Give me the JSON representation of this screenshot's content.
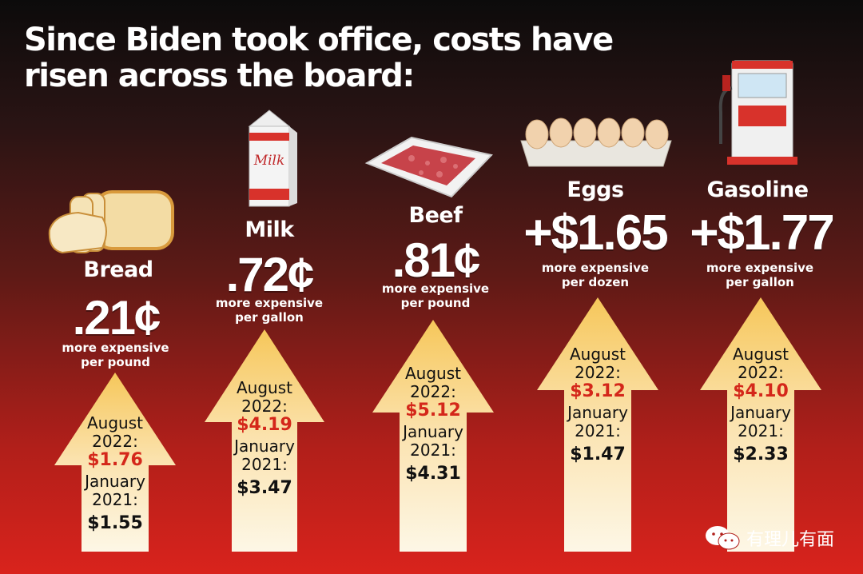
{
  "title": "Since Biden took office, costs have risen across the board:",
  "items": [
    {
      "name": "Bread",
      "increase": ".21¢",
      "note1": "more expensive",
      "note2": "per pound",
      "aug_label": "August",
      "aug_label2": "2022:",
      "aug_price": "$1.76",
      "jan_label": "January",
      "jan_label2": "2021:",
      "jan_price": "$1.55",
      "icon": "bread-icon"
    },
    {
      "name": "Milk",
      "increase": ".72¢",
      "note1": "more expensive",
      "note2": "per gallon",
      "aug_label": "August",
      "aug_label2": "2022:",
      "aug_price": "$4.19",
      "jan_label": "January",
      "jan_label2": "2021:",
      "jan_price": "$3.47",
      "icon": "milk-carton-icon",
      "carton_text": "Milk"
    },
    {
      "name": "Beef",
      "increase": ".81¢",
      "note1": "more expensive",
      "note2": "per pound",
      "aug_label": "August",
      "aug_label2": "2022:",
      "aug_price": "$5.12",
      "jan_label": "January",
      "jan_label2": "2021:",
      "jan_price": "$4.31",
      "icon": "ground-beef-icon"
    },
    {
      "name": "Eggs",
      "increase": "+$1.65",
      "note1": "more expensive",
      "note2": "per dozen",
      "aug_label": "August",
      "aug_label2": "2022:",
      "aug_price": "$3.12",
      "jan_label": "January",
      "jan_label2": "2021:",
      "jan_price": "$1.47",
      "icon": "egg-carton-icon"
    },
    {
      "name": "Gasoline",
      "increase": "+$1.77",
      "note1": "more expensive",
      "note2": "per gallon",
      "aug_label": "August",
      "aug_label2": "2022:",
      "aug_price": "$4.10",
      "jan_label": "January",
      "jan_label2": "2021:",
      "jan_price": "$2.33",
      "icon": "gas-pump-icon"
    }
  ],
  "watermark": "有理儿有面",
  "colors": {
    "price_red": "#d4271a",
    "arrow_top": "#f6c75a",
    "arrow_bottom": "#fdf7e6",
    "bg_top": "#0c0b0b",
    "bg_bottom": "#d9231c"
  }
}
